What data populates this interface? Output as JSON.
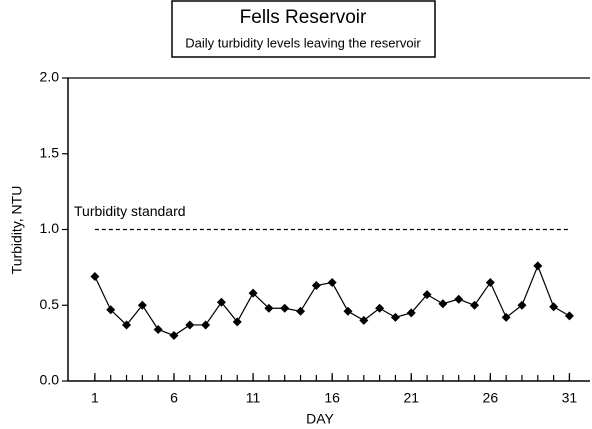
{
  "chart_data": {
    "type": "line",
    "title": "Fells Reservoir",
    "subtitle": "Daily turbidity levels leaving the reservoir",
    "x_label": "DAY",
    "y_label": "Turbidity, NTU",
    "x": [
      1,
      2,
      3,
      4,
      5,
      6,
      7,
      8,
      9,
      10,
      11,
      12,
      13,
      14,
      15,
      16,
      17,
      18,
      19,
      20,
      21,
      22,
      23,
      24,
      25,
      26,
      27,
      28,
      29,
      30,
      31
    ],
    "series": [
      {
        "name": "Turbidity",
        "color": "#000000",
        "values": [
          0.69,
          0.47,
          0.37,
          0.5,
          0.34,
          0.3,
          0.37,
          0.37,
          0.52,
          0.39,
          0.58,
          0.48,
          0.48,
          0.46,
          0.63,
          0.65,
          0.46,
          0.4,
          0.48,
          0.42,
          0.45,
          0.57,
          0.51,
          0.54,
          0.5,
          0.65,
          0.42,
          0.5,
          0.76,
          0.49,
          0.43
        ]
      }
    ],
    "reference_line": {
      "value": 1.0,
      "label": "Turbidity standard",
      "x": [
        1,
        31
      ]
    },
    "xlim": [
      -0.7,
      32.3
    ],
    "xticks": [
      1,
      6,
      11,
      16,
      21,
      26,
      31
    ],
    "xminorticks": [
      1,
      2,
      3,
      4,
      5,
      6,
      7,
      8,
      9,
      10,
      11,
      12,
      13,
      14,
      15,
      16,
      17,
      18,
      19,
      20,
      21,
      22,
      23,
      24,
      25,
      26,
      27,
      28,
      29,
      30,
      31
    ],
    "ylim": [
      0,
      2.0
    ],
    "yticks": [
      {
        "value": 0,
        "label": "0.0"
      },
      {
        "value": 0.5,
        "label": "0.5"
      },
      {
        "value": 1.0,
        "label": "1.0"
      },
      {
        "value": 1.5,
        "label": "1.5"
      },
      {
        "value": 2.0,
        "label": "2.0"
      }
    ]
  }
}
